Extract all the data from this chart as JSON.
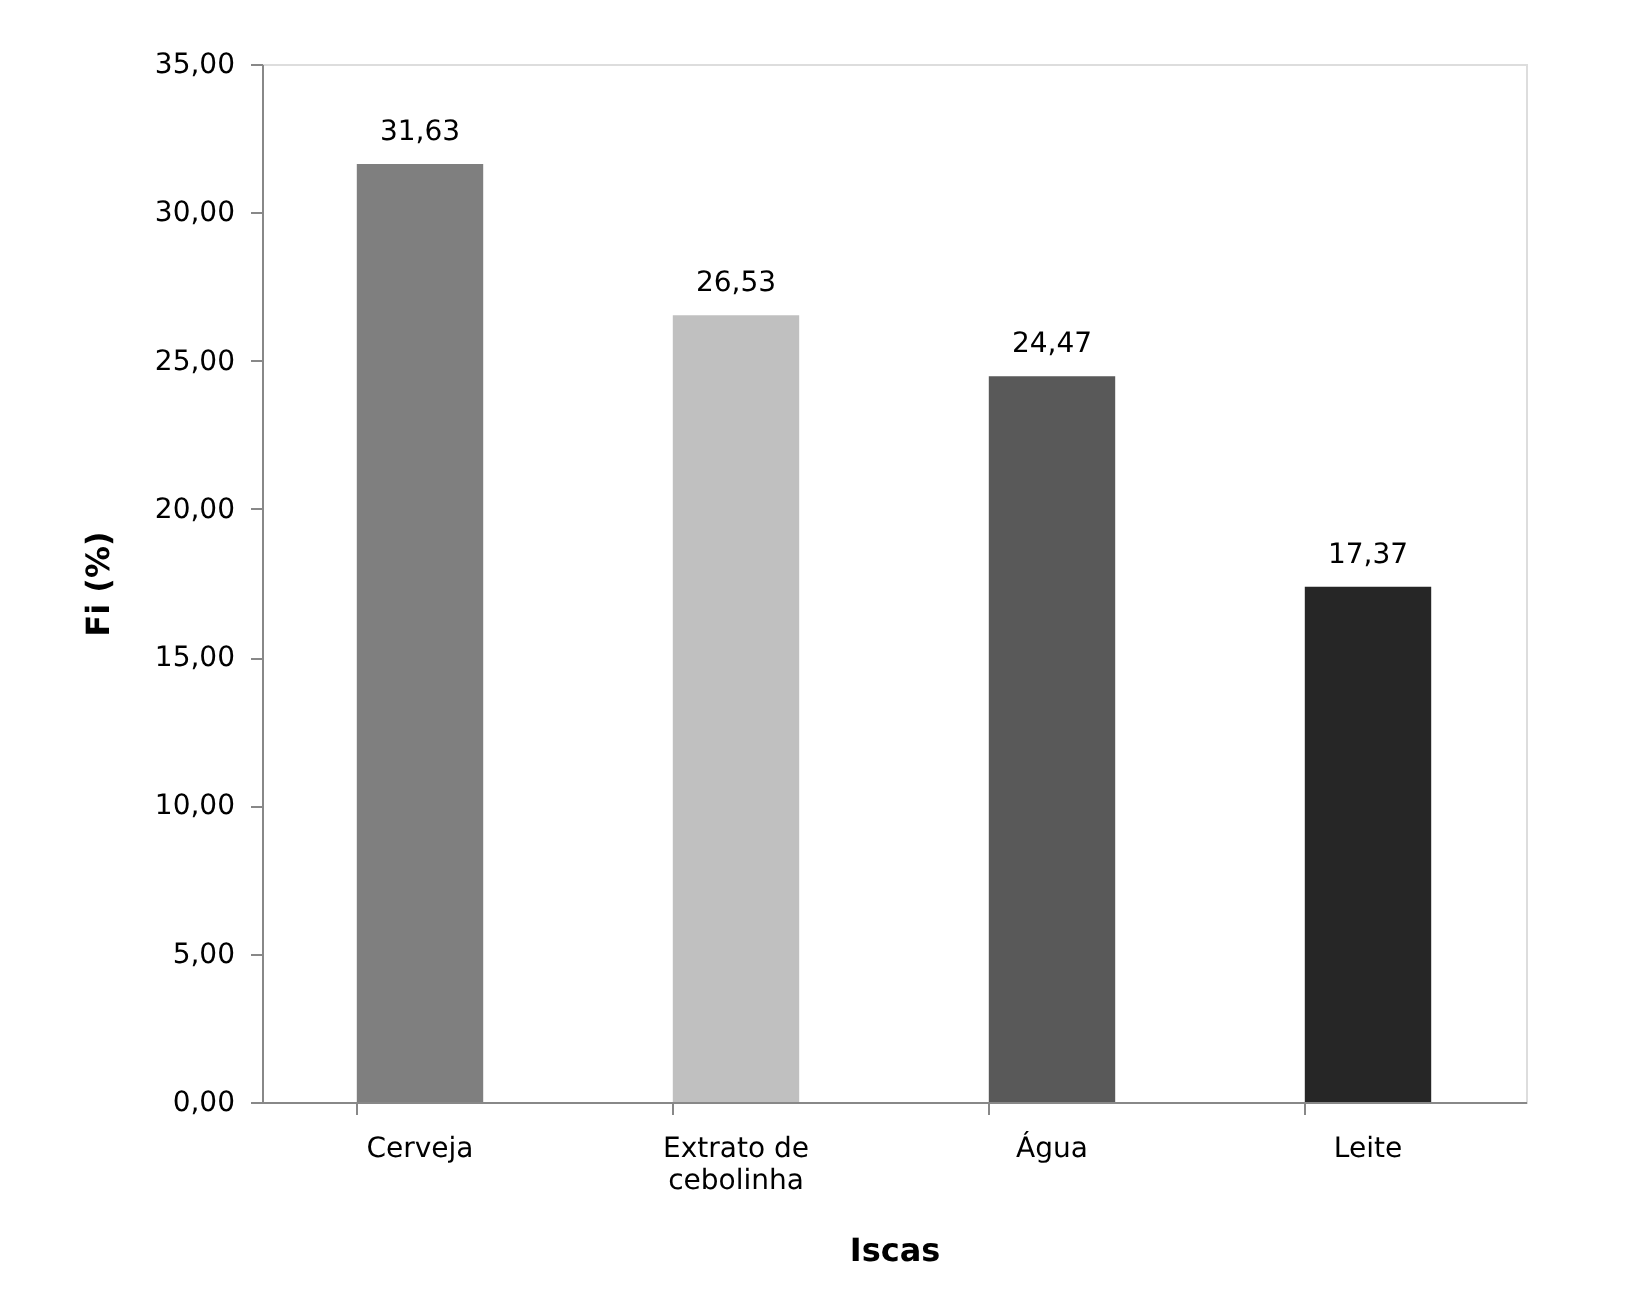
{
  "chart_data": {
    "type": "bar",
    "xlabel": "Iscas",
    "ylabel": "Fi (%)",
    "categories": [
      "Cerveja",
      "Extrato de cebolinha",
      "Água",
      "Leite"
    ],
    "values": [
      31.63,
      26.53,
      24.47,
      17.37
    ],
    "colors": [
      "#7f7f7f",
      "#c0c0c0",
      "#595959",
      "#262626"
    ],
    "value_labels": [
      "31,63",
      "26,53",
      "24,47",
      "17,37"
    ],
    "ylim": [
      0,
      35
    ],
    "yticks": [
      {
        "value": 0,
        "label": "0,00"
      },
      {
        "value": 5,
        "label": "5,00"
      },
      {
        "value": 10,
        "label": "10,00"
      },
      {
        "value": 15,
        "label": "15,00"
      },
      {
        "value": 20,
        "label": "20,00"
      },
      {
        "value": 25,
        "label": "25,00"
      },
      {
        "value": 30,
        "label": "30,00"
      },
      {
        "value": 35,
        "label": "35,00"
      }
    ],
    "grid": false,
    "legend": false
  }
}
